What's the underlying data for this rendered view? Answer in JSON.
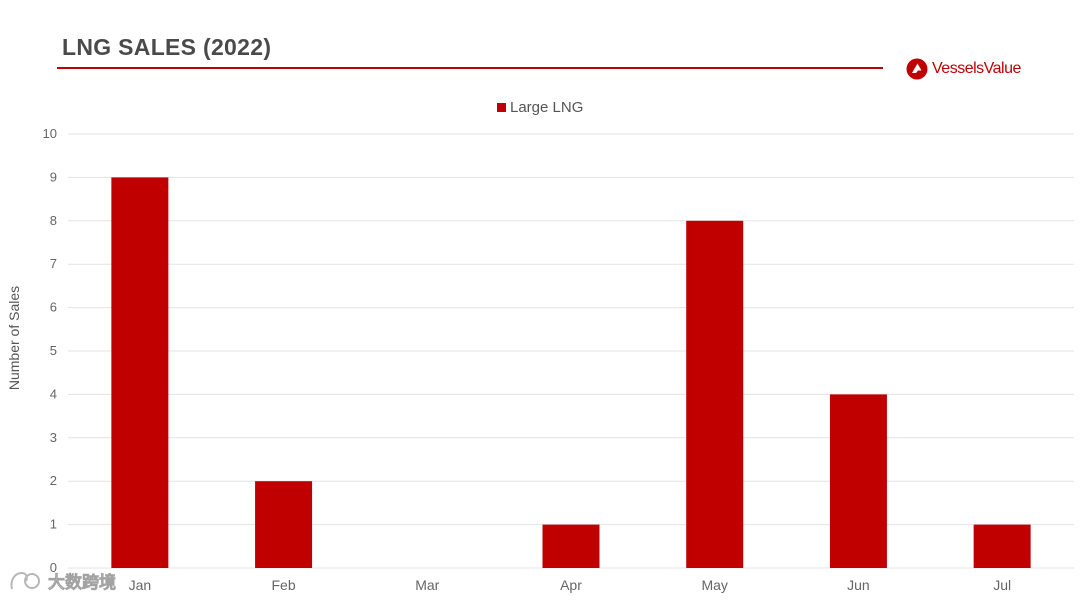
{
  "header": {
    "title": "LNG SALES (2022)",
    "accent_color": "#c00000"
  },
  "brand": {
    "logo_text": "VesselsValue",
    "icon": "vesselsvalue-logo-icon"
  },
  "watermark": {
    "text": "大数跨境",
    "icon": "watermark-logo-icon"
  },
  "chart_data": {
    "type": "bar",
    "title": "LNG SALES (2022)",
    "categories": [
      "Jan",
      "Feb",
      "Mar",
      "Apr",
      "May",
      "Jun",
      "Jul"
    ],
    "series": [
      {
        "name": "Large LNG",
        "values": [
          9,
          2,
          0,
          1,
          8,
          4,
          1
        ],
        "color": "#c00000"
      }
    ],
    "xlabel": "",
    "ylabel": "Number of Sales",
    "ylim": [
      0,
      10
    ],
    "yticks": [
      "0",
      "1",
      "2",
      "3",
      "4",
      "5",
      "6",
      "7",
      "8",
      "9",
      "10"
    ],
    "grid": true,
    "legend": "top-center"
  }
}
